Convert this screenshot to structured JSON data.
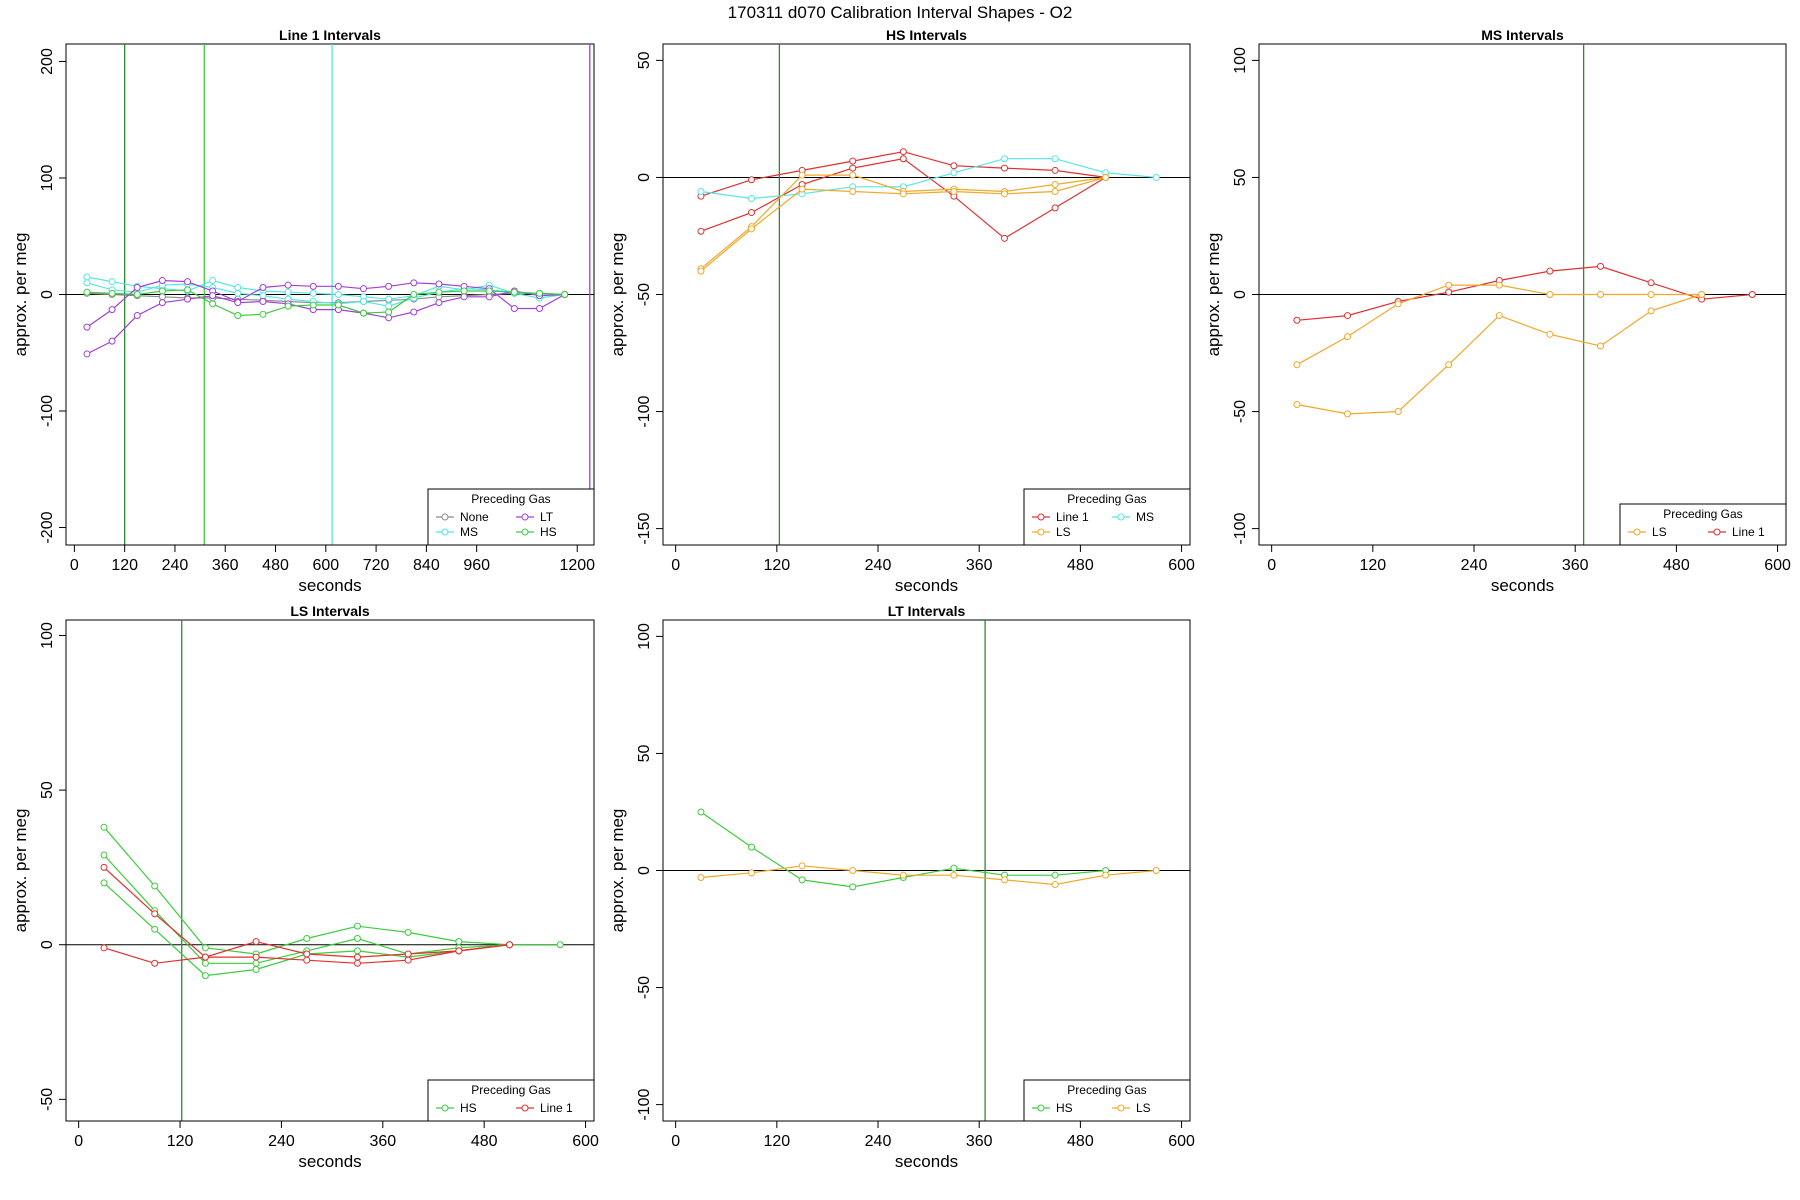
{
  "page_title": "170311   d070   Calibration Interval Shapes - O2",
  "colors": {
    "None": "#8c8c8c",
    "MS": "#55e6e6",
    "LT": "#a040d8",
    "HS": "#3ccc3c",
    "Line 1": "#e03030",
    "LS": "#f0a828",
    "vline_dark": "#2e8b2e"
  },
  "chart_data": [
    {
      "type": "line",
      "title": "Line 1 Intervals",
      "xlabel": "seconds",
      "ylabel": "approx. per meg",
      "xlim": [
        -20,
        1240
      ],
      "ylim": [
        -215,
        215
      ],
      "xticks": [
        0,
        120,
        240,
        360,
        480,
        600,
        720,
        840,
        960,
        1200
      ],
      "xtick_labels": [
        "0",
        "120",
        "240",
        "360",
        "480",
        "600",
        "720",
        "840",
        "960",
        "1200"
      ],
      "yticks": [
        -200,
        -100,
        0,
        100,
        200
      ],
      "ytick_labels": [
        "-200",
        "-100",
        "0",
        "100",
        "200"
      ],
      "hline": 0,
      "vlines": [
        {
          "x": 120,
          "color": "vline_dark"
        },
        {
          "x": 310,
          "color": "HS"
        },
        {
          "x": 615,
          "color": "MS"
        },
        {
          "x": 1230,
          "color": "LT"
        }
      ],
      "legend": {
        "title": "Preceding Gas",
        "position": "bottom-right",
        "columns": 2,
        "entries": [
          "None",
          "LT",
          "MS",
          "HS"
        ]
      },
      "series": [
        {
          "name": "None",
          "x": [
            30,
            90,
            150,
            210,
            270,
            330,
            390,
            450,
            510,
            570,
            630,
            690,
            750,
            810,
            870,
            930,
            990,
            1050,
            1110,
            1170
          ],
          "y": [
            1,
            0,
            -1,
            -2,
            -3,
            -3,
            -4,
            -5,
            -6,
            -7,
            -7,
            -6,
            -5,
            -4,
            -2,
            -1,
            0,
            1,
            1,
            0
          ]
        },
        {
          "name": "MS",
          "x": [
            30,
            90,
            150,
            210,
            270,
            330,
            390,
            450,
            510,
            570,
            630,
            690,
            750,
            810,
            870,
            930,
            990,
            1050,
            1110,
            1170
          ],
          "y": [
            15,
            11,
            7,
            5,
            3,
            12,
            6,
            3,
            2,
            1,
            0,
            -2,
            -4,
            -1,
            7,
            4,
            8,
            1,
            -3,
            0
          ]
        },
        {
          "name": "MS",
          "x": [
            30,
            90,
            150,
            210,
            270,
            330,
            390,
            450,
            510,
            570,
            630,
            690,
            750,
            810,
            870,
            930,
            990,
            1050,
            1110,
            1170
          ],
          "y": [
            10,
            4,
            2,
            8,
            9,
            6,
            1,
            -1,
            -4,
            -6,
            -8,
            -6,
            -10,
            -3,
            2,
            5,
            4,
            2,
            0,
            0
          ]
        },
        {
          "name": "LT",
          "x": [
            30,
            90,
            150,
            210,
            270,
            330,
            390,
            450,
            510,
            570,
            630,
            690,
            750,
            810,
            870,
            930,
            990,
            1050,
            1110,
            1170
          ],
          "y": [
            -28,
            -13,
            6,
            12,
            11,
            3,
            -6,
            6,
            8,
            7,
            7,
            5,
            7,
            10,
            9,
            7,
            5,
            -12,
            -12,
            0
          ]
        },
        {
          "name": "LT",
          "x": [
            30,
            90,
            150,
            210,
            270,
            330,
            390,
            450,
            510,
            570,
            630,
            690,
            750,
            810,
            870,
            930,
            990,
            1050,
            1110,
            1170
          ],
          "y": [
            -51,
            -40,
            -18,
            -7,
            -4,
            -1,
            -7,
            -6,
            -8,
            -13,
            -13,
            -16,
            -20,
            -15,
            -7,
            -2,
            -2,
            3,
            -1,
            0
          ]
        },
        {
          "name": "HS",
          "x": [
            30,
            90,
            150,
            210,
            270,
            330,
            390,
            450,
            510,
            570,
            630,
            690,
            750,
            810,
            870,
            930,
            990,
            1050,
            1110,
            1170
          ],
          "y": [
            2,
            1,
            0,
            3,
            4,
            -8,
            -18,
            -17,
            -10,
            -9,
            -9,
            -16,
            -15,
            0,
            2,
            3,
            3,
            2,
            1,
            0
          ]
        }
      ]
    },
    {
      "type": "line",
      "title": "HS Intervals",
      "xlabel": "seconds",
      "ylabel": "approx. per meg",
      "xlim": [
        -15,
        610
      ],
      "ylim": [
        -157,
        57
      ],
      "xticks": [
        0,
        120,
        240,
        360,
        480,
        600
      ],
      "xtick_labels": [
        "0",
        "120",
        "240",
        "360",
        "480",
        "600"
      ],
      "yticks": [
        -150,
        -100,
        -50,
        0,
        50
      ],
      "ytick_labels": [
        "-150",
        "-100",
        "-50",
        "0",
        "50"
      ],
      "hline": 0,
      "vlines": [
        {
          "x": 123,
          "color": "vline_dark"
        }
      ],
      "legend": {
        "title": "Preceding Gas",
        "position": "bottom-right",
        "columns": 2,
        "entries": [
          "Line 1",
          "MS",
          "LS"
        ]
      },
      "series": [
        {
          "name": "Line 1",
          "x": [
            30,
            90,
            150,
            210,
            270,
            330,
            390,
            450,
            510
          ],
          "y": [
            -23,
            -15,
            -3,
            4,
            8,
            -8,
            -26,
            -13,
            0
          ]
        },
        {
          "name": "Line 1",
          "x": [
            30,
            90,
            150,
            210,
            270,
            330,
            390,
            450,
            510
          ],
          "y": [
            -8,
            -1,
            3,
            7,
            11,
            5,
            4,
            3,
            0
          ]
        },
        {
          "name": "MS",
          "x": [
            30,
            90,
            150,
            210,
            270,
            330,
            390,
            450,
            510,
            570
          ],
          "y": [
            -6,
            -9,
            -7,
            -4,
            -4,
            2,
            8,
            8,
            2,
            0
          ]
        },
        {
          "name": "LS",
          "x": [
            30,
            90,
            150,
            210,
            270,
            330,
            390,
            450,
            510
          ],
          "y": [
            -39,
            -21,
            1,
            1,
            -6,
            -5,
            -6,
            -3,
            0
          ]
        },
        {
          "name": "LS",
          "x": [
            30,
            90,
            150,
            210,
            270,
            330,
            390,
            450,
            510
          ],
          "y": [
            -40,
            -22,
            -5,
            -6,
            -7,
            -6,
            -7,
            -6,
            0
          ]
        }
      ]
    },
    {
      "type": "line",
      "title": "MS Intervals",
      "xlabel": "seconds",
      "ylabel": "approx. per meg",
      "xlim": [
        -15,
        610
      ],
      "ylim": [
        -107,
        107
      ],
      "xticks": [
        0,
        120,
        240,
        360,
        480,
        600
      ],
      "xtick_labels": [
        "0",
        "120",
        "240",
        "360",
        "480",
        "600"
      ],
      "yticks": [
        -100,
        -50,
        0,
        50,
        100
      ],
      "ytick_labels": [
        "-100",
        "-50",
        "0",
        "50",
        "100"
      ],
      "hline": 0,
      "vlines": [
        {
          "x": 370,
          "color": "vline_dark"
        }
      ],
      "legend": {
        "title": "Preceding Gas",
        "position": "bottom-right",
        "columns": 2,
        "entries": [
          "LS",
          "Line 1"
        ]
      },
      "series": [
        {
          "name": "Line 1",
          "x": [
            30,
            90,
            150,
            210,
            270,
            330,
            390,
            450,
            510,
            570
          ],
          "y": [
            -11,
            -9,
            -3,
            1,
            6,
            10,
            12,
            5,
            -2,
            0
          ]
        },
        {
          "name": "LS",
          "x": [
            30,
            90,
            150,
            210,
            270,
            330,
            390,
            450,
            510
          ],
          "y": [
            -30,
            -18,
            -4,
            4,
            4,
            0,
            0,
            0,
            0
          ]
        },
        {
          "name": "LS",
          "x": [
            30,
            90,
            150,
            210,
            270,
            330,
            390,
            450,
            510
          ],
          "y": [
            -47,
            -51,
            -50,
            -30,
            -9,
            -17,
            -22,
            -7,
            0
          ]
        }
      ]
    },
    {
      "type": "line",
      "title": "LS Intervals",
      "xlabel": "seconds",
      "ylabel": "approx. per meg",
      "xlim": [
        -15,
        610
      ],
      "ylim": [
        -57,
        105
      ],
      "xticks": [
        0,
        120,
        240,
        360,
        480,
        600
      ],
      "xtick_labels": [
        "0",
        "120",
        "240",
        "360",
        "480",
        "600"
      ],
      "yticks": [
        -50,
        0,
        50,
        100
      ],
      "ytick_labels": [
        "-50",
        "0",
        "50",
        "100"
      ],
      "hline": 0,
      "vlines": [
        {
          "x": 122,
          "color": "vline_dark"
        }
      ],
      "legend": {
        "title": "Preceding Gas",
        "position": "bottom-right",
        "columns": 2,
        "entries": [
          "HS",
          "Line 1"
        ]
      },
      "series": [
        {
          "name": "HS",
          "x": [
            30,
            90,
            150,
            210,
            270,
            330,
            390,
            450,
            510,
            570
          ],
          "y": [
            38,
            19,
            -1,
            -3,
            2,
            6,
            4,
            1,
            0,
            0
          ]
        },
        {
          "name": "HS",
          "x": [
            30,
            90,
            150,
            210,
            270,
            330,
            390,
            450,
            510
          ],
          "y": [
            29,
            11,
            -6,
            -6,
            -2,
            2,
            -3,
            -1,
            0
          ]
        },
        {
          "name": "HS",
          "x": [
            30,
            90,
            150,
            210,
            270,
            330,
            390,
            450,
            510
          ],
          "y": [
            20,
            5,
            -10,
            -8,
            -3,
            -2,
            -4,
            -2,
            0
          ]
        },
        {
          "name": "Line 1",
          "x": [
            30,
            90,
            150,
            210,
            270,
            330,
            390,
            450,
            510
          ],
          "y": [
            25,
            10,
            -4,
            1,
            -3,
            -4,
            -3,
            -2,
            0
          ]
        },
        {
          "name": "Line 1",
          "x": [
            30,
            90,
            150,
            210,
            270,
            330,
            390,
            450,
            510
          ],
          "y": [
            -1,
            -6,
            -4,
            -4,
            -5,
            -6,
            -5,
            -2,
            0
          ]
        }
      ]
    },
    {
      "type": "line",
      "title": "LT Intervals",
      "xlabel": "seconds",
      "ylabel": "approx. per meg",
      "xlim": [
        -15,
        610
      ],
      "ylim": [
        -107,
        107
      ],
      "xticks": [
        0,
        120,
        240,
        360,
        480,
        600
      ],
      "xtick_labels": [
        "0",
        "120",
        "240",
        "360",
        "480",
        "600"
      ],
      "yticks": [
        -100,
        -50,
        0,
        50,
        100
      ],
      "ytick_labels": [
        "-100",
        "-50",
        "0",
        "50",
        "100"
      ],
      "hline": 0,
      "vlines": [
        {
          "x": 367,
          "color": "vline_dark"
        }
      ],
      "legend": {
        "title": "Preceding Gas",
        "position": "bottom-right",
        "columns": 2,
        "entries": [
          "HS",
          "LS"
        ]
      },
      "series": [
        {
          "name": "HS",
          "x": [
            30,
            90,
            150,
            210,
            270,
            330,
            390,
            450,
            510
          ],
          "y": [
            25,
            10,
            -4,
            -7,
            -3,
            1,
            -2,
            -2,
            0
          ]
        },
        {
          "name": "LS",
          "x": [
            30,
            90,
            150,
            210,
            270,
            330,
            390,
            450,
            510,
            570
          ],
          "y": [
            -3,
            -1,
            2,
            0,
            -2,
            -2,
            -4,
            -6,
            -2,
            0
          ]
        }
      ]
    }
  ]
}
